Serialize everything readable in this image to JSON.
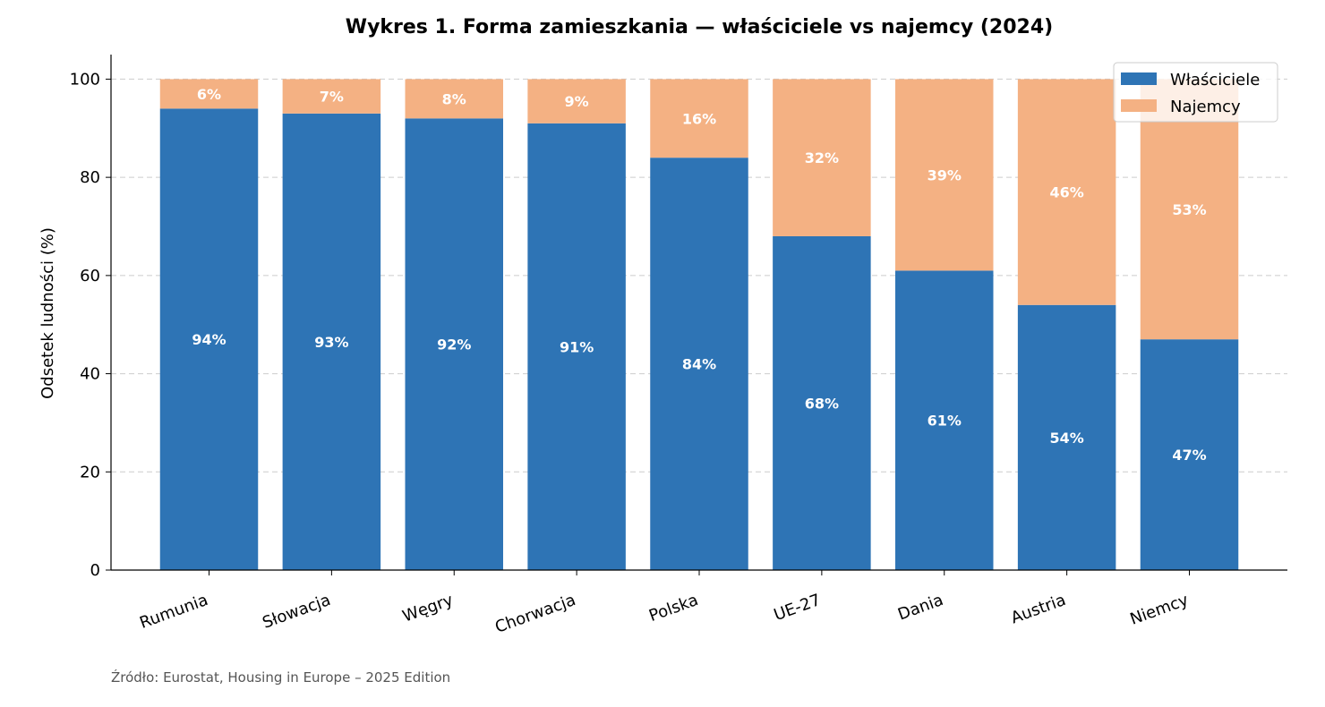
{
  "chart_data": {
    "type": "bar",
    "stacked": true,
    "title": "Wykres 1. Forma zamieszkania — właściciele vs najemcy (2024)",
    "xlabel": "",
    "ylabel": "Odsetek ludności (%)",
    "ylim": [
      0,
      105
    ],
    "yticks": [
      0,
      20,
      40,
      60,
      80,
      100
    ],
    "grid": "y-dashed",
    "legend_position": "top-right",
    "categories": [
      "Rumunia",
      "Słowacja",
      "Węgry",
      "Chorwacja",
      "Polska",
      "UE-27",
      "Dania",
      "Austria",
      "Niemcy"
    ],
    "series": [
      {
        "name": "Właściciele",
        "color": "#2e74b5",
        "values": [
          94,
          93,
          92,
          91,
          84,
          68,
          61,
          54,
          47
        ],
        "labels": [
          "94%",
          "93%",
          "92%",
          "91%",
          "84%",
          "68%",
          "61%",
          "54%",
          "47%"
        ]
      },
      {
        "name": "Najemcy",
        "color": "#f4b183",
        "values": [
          6,
          7,
          8,
          9,
          16,
          32,
          39,
          46,
          53
        ],
        "labels": [
          "6%",
          "7%",
          "8%",
          "9%",
          "16%",
          "32%",
          "39%",
          "46%",
          "53%"
        ]
      }
    ]
  },
  "source": "Źródło: Eurostat, Housing in Europe – 2025 Edition"
}
